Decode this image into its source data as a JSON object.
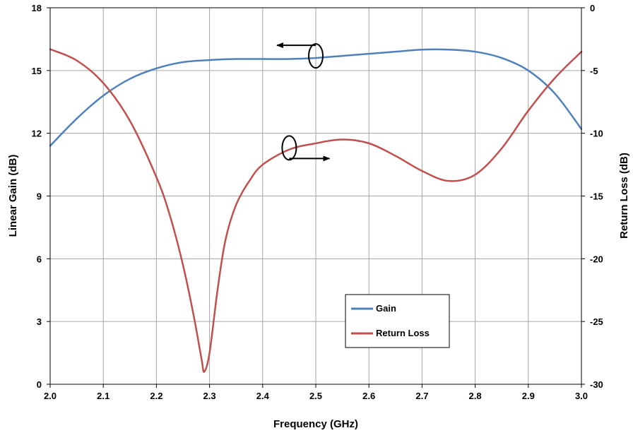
{
  "chart_data": {
    "type": "line",
    "xlabel": "Frequency (GHz)",
    "ylabel": "Linear Gain (dB)",
    "y2label": "Return Loss (dB)",
    "xlim": [
      2.0,
      3.0
    ],
    "ylim": [
      0,
      18
    ],
    "y2lim": [
      -30,
      0
    ],
    "grid": true,
    "legend_position": "bottom-center",
    "x_ticks": [
      "2.0",
      "2.1",
      "2.2",
      "2.3",
      "2.4",
      "2.5",
      "2.6",
      "2.7",
      "2.8",
      "2.9",
      "3.0"
    ],
    "y_ticks": [
      "0",
      "3",
      "6",
      "9",
      "12",
      "15",
      "18"
    ],
    "y2_ticks": [
      "-30",
      "-25",
      "-20",
      "-15",
      "-10",
      "-5",
      "0"
    ],
    "series": [
      {
        "name": "Gain",
        "axis": "left",
        "color": "#4f81bd",
        "x": [
          2.0,
          2.05,
          2.1,
          2.15,
          2.2,
          2.25,
          2.3,
          2.35,
          2.4,
          2.45,
          2.5,
          2.55,
          2.6,
          2.65,
          2.7,
          2.75,
          2.8,
          2.85,
          2.9,
          2.95,
          3.0
        ],
        "y": [
          11.4,
          12.7,
          13.8,
          14.6,
          15.1,
          15.4,
          15.5,
          15.55,
          15.55,
          15.55,
          15.6,
          15.7,
          15.8,
          15.9,
          16.0,
          16.0,
          15.9,
          15.6,
          15.0,
          13.9,
          12.2
        ]
      },
      {
        "name": "Return Loss",
        "axis": "right",
        "color": "#c0504d",
        "x": [
          2.0,
          2.05,
          2.1,
          2.15,
          2.2,
          2.225,
          2.25,
          2.27,
          2.285,
          2.29,
          2.3,
          2.315,
          2.33,
          2.35,
          2.375,
          2.4,
          2.45,
          2.5,
          2.55,
          2.6,
          2.65,
          2.7,
          2.75,
          2.8,
          2.85,
          2.9,
          2.95,
          3.0
        ],
        "y": [
          -3.3,
          -4.2,
          -6.0,
          -9.0,
          -13.5,
          -16.5,
          -20.5,
          -24.5,
          -28.0,
          -29.0,
          -27.5,
          -22.5,
          -18.5,
          -15.7,
          -13.8,
          -12.5,
          -11.3,
          -10.8,
          -10.5,
          -10.8,
          -11.8,
          -13.0,
          -13.8,
          -13.3,
          -11.2,
          -8.2,
          -5.6,
          -3.5
        ]
      }
    ],
    "annotations": [
      {
        "type": "ellipse-arrow",
        "direction": "left",
        "target": "Gain",
        "x": 2.5,
        "y": 15.7
      },
      {
        "type": "ellipse-arrow",
        "direction": "right",
        "target": "Return Loss",
        "x": 2.45,
        "y": 11.3
      }
    ]
  }
}
